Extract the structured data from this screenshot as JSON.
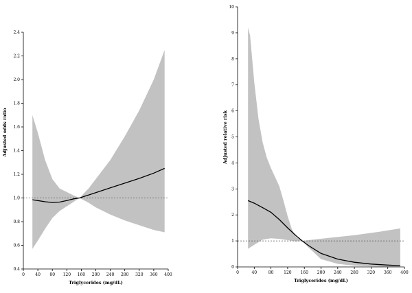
{
  "chart_data": [
    {
      "type": "line",
      "xlabel": "Triglycerides (mg/dL)",
      "ylabel": "Adjusted odds ratio",
      "xlim": [
        0,
        400
      ],
      "ylim": [
        0.4,
        2.4
      ],
      "xticks": [
        0,
        40,
        80,
        120,
        160,
        200,
        240,
        280,
        320,
        360,
        400
      ],
      "yticks": [
        0.4,
        0.6,
        0.8,
        1.0,
        1.2,
        1.4,
        1.6,
        1.8,
        2.0,
        2.2,
        2.4
      ],
      "ytick_labels": [
        "0.4",
        "0.6",
        "0.8",
        "1.0",
        "1.2",
        "1.4",
        "1.6",
        "1.8",
        "2.0",
        "2.2",
        "2.4"
      ],
      "reference_line": 1.0,
      "grid": false,
      "series": [
        {
          "role": "estimate",
          "x": [
            25,
            40,
            60,
            80,
            100,
            120,
            140,
            155,
            180,
            200,
            240,
            280,
            320,
            360,
            390
          ],
          "y": [
            0.985,
            0.978,
            0.968,
            0.962,
            0.965,
            0.978,
            0.993,
            1.0,
            1.025,
            1.045,
            1.085,
            1.125,
            1.165,
            1.21,
            1.25
          ]
        },
        {
          "role": "ci_upper",
          "x": [
            25,
            40,
            60,
            80,
            100,
            120,
            140,
            155,
            180,
            200,
            240,
            280,
            320,
            360,
            390
          ],
          "y": [
            1.7,
            1.55,
            1.32,
            1.16,
            1.08,
            1.05,
            1.02,
            1.0,
            1.08,
            1.16,
            1.32,
            1.52,
            1.74,
            2.0,
            2.25
          ]
        },
        {
          "role": "ci_lower",
          "x": [
            25,
            40,
            60,
            80,
            100,
            120,
            140,
            155,
            180,
            200,
            240,
            280,
            320,
            360,
            390
          ],
          "y": [
            0.57,
            0.64,
            0.74,
            0.83,
            0.89,
            0.93,
            0.97,
            1.0,
            0.96,
            0.92,
            0.86,
            0.81,
            0.77,
            0.73,
            0.71
          ]
        }
      ]
    },
    {
      "type": "line",
      "xlabel": "Triglycerides (mg/dL)",
      "ylabel": "Adjusted relative risk",
      "xlim": [
        0,
        400
      ],
      "ylim": [
        0,
        10
      ],
      "xticks": [
        0,
        40,
        80,
        120,
        160,
        200,
        240,
        280,
        320,
        360,
        400
      ],
      "yticks": [
        0,
        1,
        2,
        3,
        4,
        5,
        6,
        7,
        8,
        9,
        10
      ],
      "ytick_labels": [
        "0",
        "1",
        "2",
        "3",
        "4",
        "5",
        "6",
        "7",
        "8",
        "9",
        "10"
      ],
      "reference_line": 1.0,
      "grid": false,
      "series": [
        {
          "role": "estimate",
          "x": [
            25,
            40,
            60,
            80,
            100,
            120,
            140,
            155,
            170,
            200,
            240,
            280,
            320,
            360,
            390
          ],
          "y": [
            2.55,
            2.45,
            2.28,
            2.1,
            1.82,
            1.5,
            1.2,
            1.0,
            0.82,
            0.52,
            0.3,
            0.18,
            0.11,
            0.07,
            0.05
          ]
        },
        {
          "role": "ci_upper",
          "x": [
            25,
            30,
            40,
            50,
            60,
            70,
            80,
            90,
            100,
            110,
            120,
            130,
            140,
            155,
            180,
            220,
            280,
            340,
            390
          ],
          "y": [
            9.2,
            8.9,
            7.1,
            5.7,
            4.8,
            4.2,
            3.8,
            3.45,
            3.1,
            2.55,
            1.95,
            1.45,
            1.15,
            1.0,
            1.05,
            1.12,
            1.22,
            1.35,
            1.48
          ]
        },
        {
          "role": "ci_lower",
          "x": [
            25,
            40,
            60,
            80,
            100,
            120,
            140,
            155,
            170,
            200,
            240,
            280,
            320,
            360,
            390
          ],
          "y": [
            0.7,
            0.85,
            1.05,
            1.1,
            1.08,
            1.03,
            0.98,
            1.0,
            0.75,
            0.3,
            0.12,
            0.05,
            0.02,
            0.01,
            0.0
          ]
        }
      ]
    }
  ]
}
